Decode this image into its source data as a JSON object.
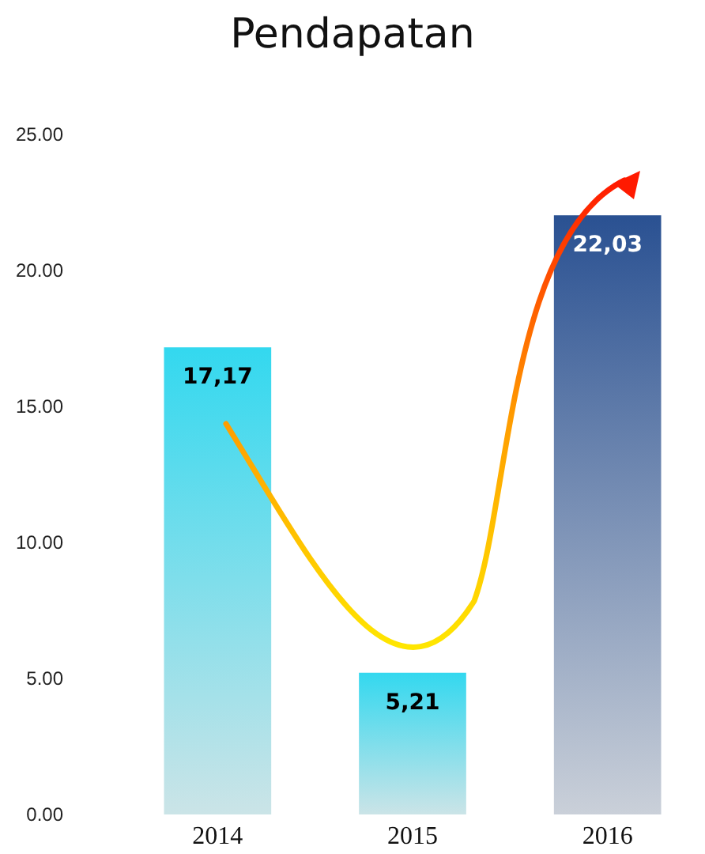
{
  "chart_data": {
    "type": "bar",
    "title": "Pendapatan",
    "categories": [
      "2014",
      "2015",
      "2016"
    ],
    "values": [
      17.17,
      5.21,
      22.03
    ],
    "colors": [
      "#33d8ef",
      "#33d8ef",
      "#2a5192"
    ],
    "value_labels": [
      "17,17",
      "5,21",
      "22,03"
    ],
    "ylim": [
      0,
      25
    ],
    "yticks": [
      {
        "value": 0,
        "label": "0.00"
      },
      {
        "value": 5,
        "label": "5.00"
      },
      {
        "value": 10,
        "label": "10.00"
      },
      {
        "value": 15,
        "label": "15.00"
      },
      {
        "value": 20,
        "label": "20.00"
      },
      {
        "value": 25,
        "label": "25.00"
      }
    ],
    "grid": false
  }
}
